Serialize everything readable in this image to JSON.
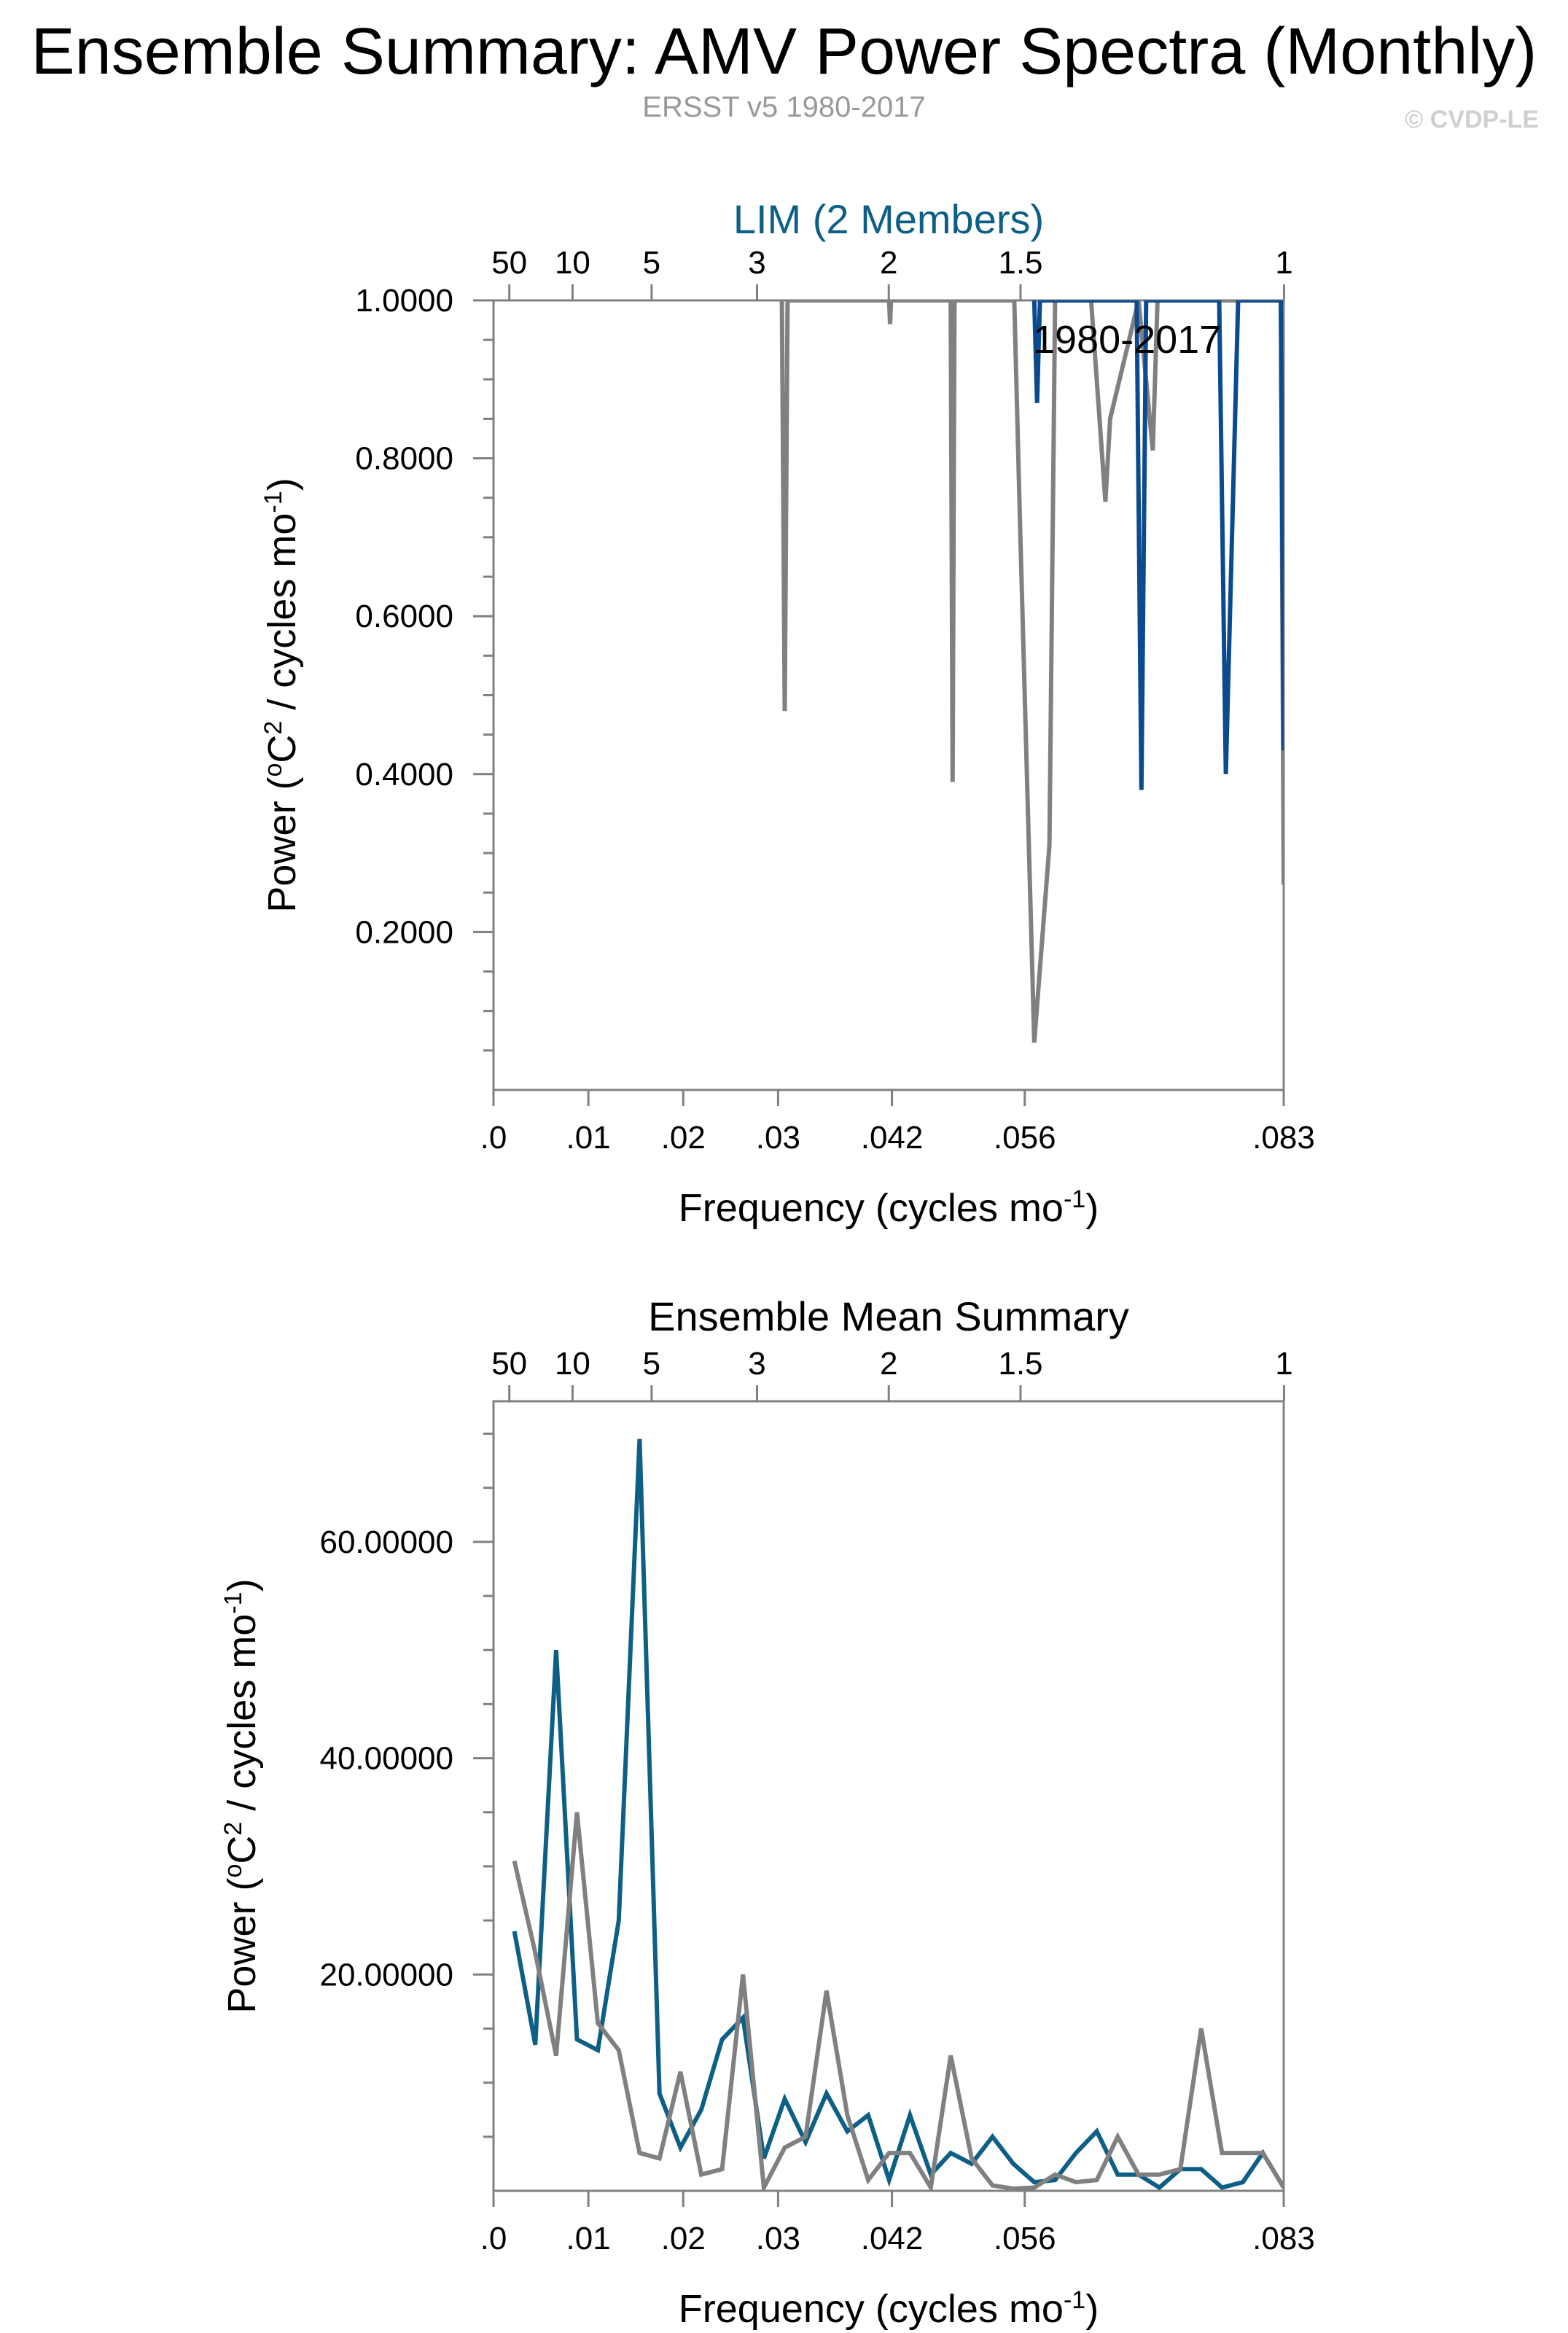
{
  "header": {
    "title": "Ensemble Summary: AMV Power Spectra (Monthly)",
    "subtitle": "ERSST v5 1980-2017",
    "copyright": "© CVDP-LE"
  },
  "colors": {
    "model": "#0e5f86",
    "member_top": "#0b4a8f",
    "observed": "#808080",
    "axis": "#808080"
  },
  "chart_data": [
    {
      "type": "line",
      "title": "LIM (2 Members)",
      "annotation": "1980-2017",
      "xlabel": "Frequency (cycles mo⁻¹)",
      "ylabel": "Power (°C² / cycles mo⁻¹)",
      "xlim": [
        0,
        0.0833
      ],
      "ylim": [
        0,
        1.0
      ],
      "x_tick_labels": [
        ".0",
        ".01",
        ".02",
        ".03",
        ".042",
        ".056",
        ".083"
      ],
      "x_tick_values": [
        0,
        0.01,
        0.02,
        0.03,
        0.042,
        0.056,
        0.0833
      ],
      "period_tick_labels": [
        "50",
        "10",
        "5",
        "3",
        "2",
        "1.5",
        "1"
      ],
      "period_tick_values": [
        50,
        10,
        5,
        3,
        2,
        1.5,
        1
      ],
      "y_tick_labels": [
        "0.2000",
        "0.4000",
        "0.6000",
        "0.8000",
        "1.0000"
      ],
      "y_tick_values": [
        0.2,
        0.4,
        0.6,
        0.8,
        1.0
      ],
      "series": [
        {
          "color": "#808080",
          "x": [
            0.0304,
            0.0307,
            0.031,
            0.0417,
            0.0418,
            0.0419,
            0.0482,
            0.0484,
            0.0486,
            0.0549,
            0.0555,
            0.057,
            0.0586,
            0.0592,
            0.06,
            0.0608,
            0.063,
            0.0645,
            0.065,
            0.068,
            0.0695,
            0.07,
            0.076,
            0.0778,
            0.083,
            0.0833
          ],
          "y": [
            1.0,
            0.48,
            1.0,
            1.0,
            0.97,
            1.0,
            1.0,
            0.39,
            1.0,
            1.0,
            0.72,
            0.06,
            0.31,
            1.0,
            1.0,
            1.0,
            1.0,
            0.745,
            0.85,
            1.0,
            0.81,
            1.0,
            1.0,
            1.0,
            1.0,
            0.26
          ]
        },
        {
          "color": "#0b4a8f",
          "x": [
            0.057,
            0.0573,
            0.0576,
            0.0678,
            0.0683,
            0.0688,
            0.0765,
            0.0772,
            0.0785,
            0.083,
            0.0833
          ],
          "y": [
            1.0,
            0.87,
            1.0,
            1.0,
            0.38,
            1.0,
            1.0,
            0.4,
            1.0,
            1.0,
            0.43
          ]
        }
      ]
    },
    {
      "type": "line",
      "title": "Ensemble Mean Summary",
      "xlabel": "Frequency (cycles mo⁻¹)",
      "ylabel": "Power (°C² / cycles mo⁻¹)",
      "xlim": [
        0,
        0.0833
      ],
      "ylim": [
        0,
        73
      ],
      "x_tick_labels": [
        ".0",
        ".01",
        ".02",
        ".03",
        ".042",
        ".056",
        ".083"
      ],
      "x_tick_values": [
        0,
        0.01,
        0.02,
        0.03,
        0.042,
        0.056,
        0.0833
      ],
      "period_tick_labels": [
        "50",
        "10",
        "5",
        "3",
        "2",
        "1.5",
        "1"
      ],
      "period_tick_values": [
        50,
        10,
        5,
        3,
        2,
        1.5,
        1
      ],
      "y_tick_labels": [
        "20.00000",
        "40.00000",
        "60.00000"
      ],
      "y_tick_values": [
        20,
        40,
        60
      ],
      "series": [
        {
          "color": "#0e5f86",
          "x": [
            0.0022,
            0.0044,
            0.0066,
            0.0088,
            0.011,
            0.0132,
            0.0154,
            0.0175,
            0.0197,
            0.0219,
            0.0241,
            0.0263,
            0.0285,
            0.0307,
            0.0329,
            0.0351,
            0.0373,
            0.0395,
            0.0417,
            0.0439,
            0.0461,
            0.0482,
            0.0504,
            0.0526,
            0.0548,
            0.057,
            0.0592,
            0.0614,
            0.0636,
            0.0658,
            0.068,
            0.0702,
            0.0724,
            0.0746,
            0.0768,
            0.079,
            0.0811,
            0.0833
          ],
          "y": [
            24.0,
            13.5,
            50.0,
            14.0,
            13.0,
            25.0,
            69.5,
            9.0,
            4.0,
            7.5,
            14.0,
            16.0,
            3.0,
            8.5,
            4.5,
            9.0,
            5.5,
            7.0,
            1.0,
            7.0,
            1.5,
            3.5,
            2.5,
            5.0,
            2.5,
            0.8,
            1.0,
            3.5,
            5.5,
            1.5,
            1.5,
            0.3,
            2.0,
            2.0,
            0.3,
            0.8,
            3.5,
            0.3
          ]
        },
        {
          "color": "#808080",
          "x": [
            0.0022,
            0.0044,
            0.0066,
            0.0088,
            0.011,
            0.0132,
            0.0154,
            0.0175,
            0.0197,
            0.0219,
            0.0241,
            0.0263,
            0.0285,
            0.0307,
            0.0329,
            0.0351,
            0.0373,
            0.0395,
            0.0417,
            0.0439,
            0.0461,
            0.0482,
            0.0504,
            0.0526,
            0.0548,
            0.057,
            0.0592,
            0.0614,
            0.0636,
            0.0658,
            0.068,
            0.0702,
            0.0724,
            0.0746,
            0.0768,
            0.079,
            0.0811,
            0.0833
          ],
          "y": [
            30.5,
            22.0,
            12.5,
            35.0,
            15.5,
            13.0,
            3.5,
            3.0,
            11.0,
            1.5,
            2.0,
            20.0,
            0.3,
            4.0,
            5.0,
            18.5,
            7.0,
            1.0,
            3.5,
            3.5,
            0.3,
            12.5,
            3.0,
            0.5,
            0.2,
            0.3,
            1.5,
            0.8,
            1.0,
            5.0,
            1.5,
            1.5,
            2.0,
            15.0,
            3.5,
            3.5,
            3.5,
            0.3
          ]
        }
      ]
    }
  ]
}
